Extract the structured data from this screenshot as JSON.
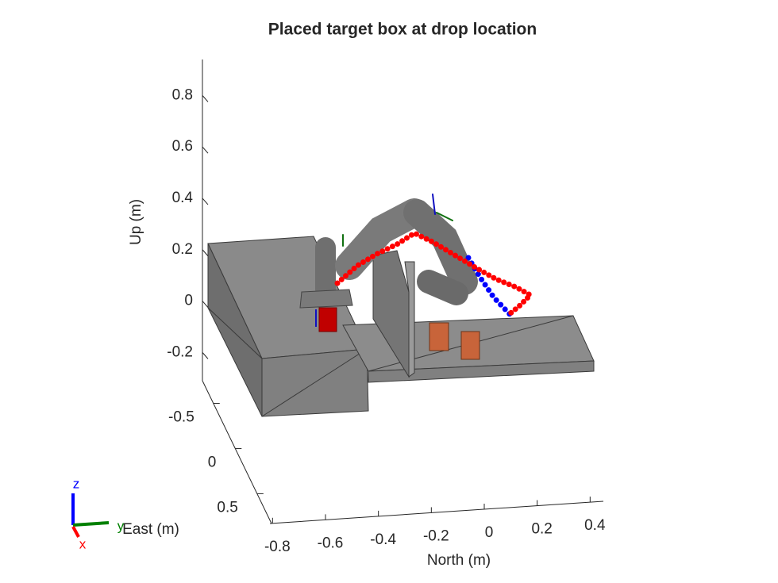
{
  "chart_data": {
    "type": "scene3d",
    "title": "Placed target box at drop location",
    "xlabel": "North (m)",
    "ylabel": "East (m)",
    "zlabel": "Up (m)",
    "xlim": [
      -0.81,
      0.45
    ],
    "xticks": [
      -0.8,
      -0.6,
      -0.4,
      -0.2,
      0,
      0.2,
      0.4
    ],
    "ylim": [
      -0.75,
      0.83
    ],
    "yticks": [
      -0.5,
      0,
      0.5
    ],
    "zlim": [
      -0.31,
      0.94
    ],
    "zticks": [
      -0.2,
      0,
      0.2,
      0.4,
      0.6,
      0.8
    ]
  },
  "triad": {
    "x": "x",
    "y": "y",
    "z": "z"
  }
}
